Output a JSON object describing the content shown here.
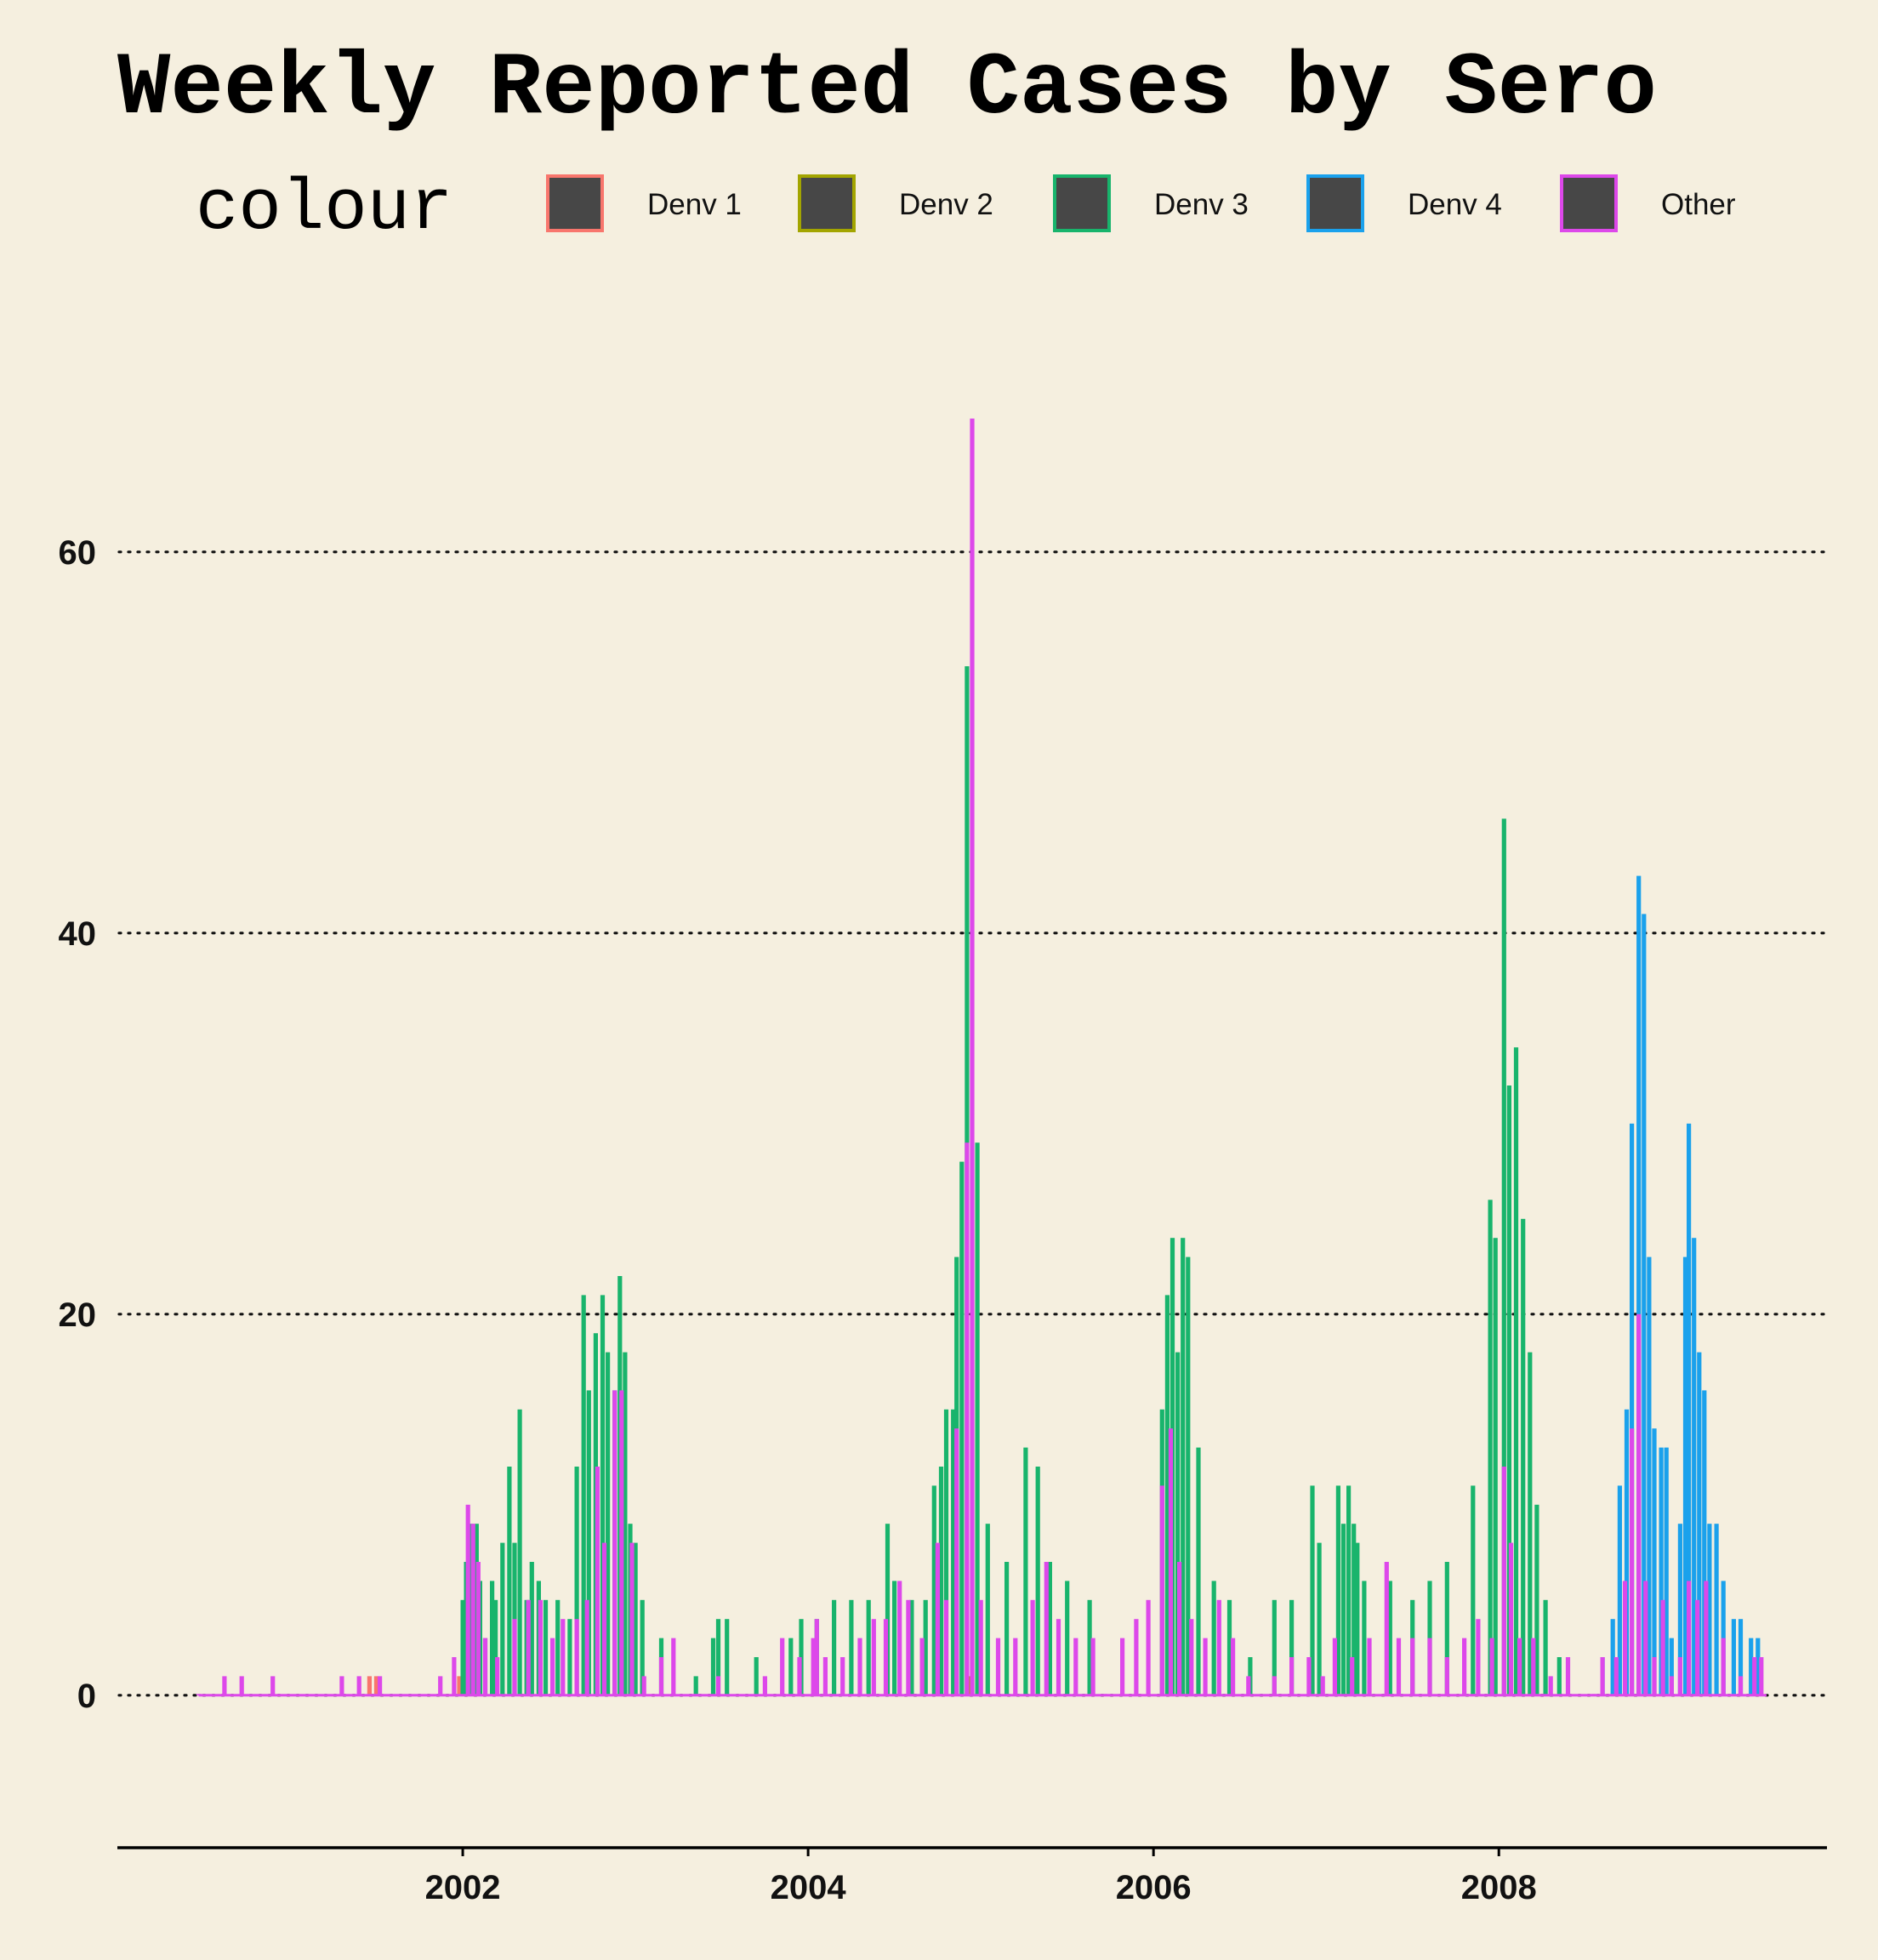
{
  "chart_data": {
    "type": "bar",
    "title": "Weekly Reported Cases by Sero",
    "xlabel": "",
    "ylabel": "",
    "legend": {
      "title": "colour",
      "placement": "top"
    },
    "ylim": [
      -8,
      72
    ],
    "xlim": [
      2000.0,
      2009.9
    ],
    "grid": "horizontal dotted",
    "x_ticks": [
      2002,
      2004,
      2006,
      2008
    ],
    "y_ticks": [
      0,
      20,
      40,
      60
    ],
    "colors": {
      "Denv 1": "#f8766d",
      "Denv 2": "#a3a500",
      "Denv 3": "#18b46c",
      "Denv 4": "#1aa1ec",
      "Other": "#dd48ea",
      "legend_fill": "#474747",
      "background": "#f5efdf"
    },
    "series": [
      {
        "name": "Denv 1",
        "points": [
          [
            2001.46,
            1
          ],
          [
            2001.5,
            1
          ],
          [
            2001.98,
            1
          ],
          [
            2002.0,
            3
          ]
        ]
      },
      {
        "name": "Denv 2",
        "points": [
          [
            2002.02,
            1
          ],
          [
            2004.94,
            1
          ]
        ]
      },
      {
        "name": "Denv 3",
        "points": [
          [
            2002.0,
            5
          ],
          [
            2002.02,
            7
          ],
          [
            2002.05,
            9
          ],
          [
            2002.08,
            9
          ],
          [
            2002.1,
            6
          ],
          [
            2002.13,
            3
          ],
          [
            2002.17,
            6
          ],
          [
            2002.19,
            5
          ],
          [
            2002.23,
            8
          ],
          [
            2002.27,
            12
          ],
          [
            2002.3,
            8
          ],
          [
            2002.33,
            15
          ],
          [
            2002.37,
            5
          ],
          [
            2002.4,
            7
          ],
          [
            2002.44,
            6
          ],
          [
            2002.48,
            5
          ],
          [
            2002.55,
            5
          ],
          [
            2002.62,
            4
          ],
          [
            2002.66,
            12
          ],
          [
            2002.7,
            21
          ],
          [
            2002.73,
            16
          ],
          [
            2002.77,
            19
          ],
          [
            2002.81,
            21
          ],
          [
            2002.84,
            18
          ],
          [
            2002.88,
            16
          ],
          [
            2002.91,
            22
          ],
          [
            2002.94,
            18
          ],
          [
            2002.97,
            9
          ],
          [
            2003.0,
            8
          ],
          [
            2003.04,
            5
          ],
          [
            2003.15,
            3
          ],
          [
            2003.35,
            1
          ],
          [
            2003.45,
            3
          ],
          [
            2003.48,
            4
          ],
          [
            2003.53,
            4
          ],
          [
            2003.7,
            2
          ],
          [
            2003.9,
            3
          ],
          [
            2003.96,
            4
          ],
          [
            2004.05,
            4
          ],
          [
            2004.15,
            5
          ],
          [
            2004.25,
            5
          ],
          [
            2004.35,
            5
          ],
          [
            2004.46,
            9
          ],
          [
            2004.5,
            6
          ],
          [
            2004.6,
            5
          ],
          [
            2004.68,
            5
          ],
          [
            2004.73,
            11
          ],
          [
            2004.77,
            12
          ],
          [
            2004.8,
            15
          ],
          [
            2004.84,
            15
          ],
          [
            2004.86,
            23
          ],
          [
            2004.89,
            28
          ],
          [
            2004.92,
            54
          ],
          [
            2004.98,
            29
          ],
          [
            2005.04,
            9
          ],
          [
            2005.15,
            7
          ],
          [
            2005.26,
            13
          ],
          [
            2005.33,
            12
          ],
          [
            2005.4,
            7
          ],
          [
            2005.5,
            6
          ],
          [
            2005.63,
            5
          ],
          [
            2006.05,
            15
          ],
          [
            2006.08,
            21
          ],
          [
            2006.11,
            24
          ],
          [
            2006.14,
            18
          ],
          [
            2006.17,
            24
          ],
          [
            2006.2,
            23
          ],
          [
            2006.26,
            13
          ],
          [
            2006.35,
            6
          ],
          [
            2006.44,
            5
          ],
          [
            2006.56,
            2
          ],
          [
            2006.7,
            5
          ],
          [
            2006.8,
            5
          ],
          [
            2006.92,
            11
          ],
          [
            2006.96,
            8
          ],
          [
            2007.07,
            11
          ],
          [
            2007.1,
            9
          ],
          [
            2007.13,
            11
          ],
          [
            2007.16,
            9
          ],
          [
            2007.18,
            8
          ],
          [
            2007.22,
            6
          ],
          [
            2007.37,
            6
          ],
          [
            2007.5,
            5
          ],
          [
            2007.6,
            6
          ],
          [
            2007.7,
            7
          ],
          [
            2007.85,
            11
          ],
          [
            2007.95,
            26
          ],
          [
            2007.98,
            24
          ],
          [
            2008.03,
            46
          ],
          [
            2008.06,
            32
          ],
          [
            2008.1,
            34
          ],
          [
            2008.14,
            25
          ],
          [
            2008.18,
            18
          ],
          [
            2008.22,
            10
          ],
          [
            2008.27,
            5
          ],
          [
            2008.35,
            2
          ]
        ]
      },
      {
        "name": "Denv 4",
        "points": [
          [
            2008.6,
            2
          ],
          [
            2008.66,
            4
          ],
          [
            2008.7,
            11
          ],
          [
            2008.74,
            15
          ],
          [
            2008.77,
            30
          ],
          [
            2008.81,
            43
          ],
          [
            2008.84,
            41
          ],
          [
            2008.87,
            23
          ],
          [
            2008.9,
            14
          ],
          [
            2008.94,
            13
          ],
          [
            2008.97,
            13
          ],
          [
            2009.0,
            3
          ],
          [
            2009.05,
            9
          ],
          [
            2009.08,
            23
          ],
          [
            2009.1,
            30
          ],
          [
            2009.13,
            24
          ],
          [
            2009.16,
            18
          ],
          [
            2009.19,
            16
          ],
          [
            2009.22,
            9
          ],
          [
            2009.26,
            9
          ],
          [
            2009.3,
            6
          ],
          [
            2009.36,
            4
          ],
          [
            2009.4,
            4
          ],
          [
            2009.46,
            3
          ],
          [
            2009.5,
            3
          ]
        ]
      },
      {
        "name": "Other",
        "points": [
          [
            2000.47,
            0
          ],
          [
            2000.62,
            1
          ],
          [
            2000.72,
            1
          ],
          [
            2000.9,
            1
          ],
          [
            2001.3,
            1
          ],
          [
            2001.4,
            1
          ],
          [
            2001.52,
            1
          ],
          [
            2001.87,
            1
          ],
          [
            2001.95,
            2
          ],
          [
            2002.03,
            10
          ],
          [
            2002.06,
            9
          ],
          [
            2002.09,
            7
          ],
          [
            2002.13,
            3
          ],
          [
            2002.2,
            2
          ],
          [
            2002.3,
            4
          ],
          [
            2002.38,
            5
          ],
          [
            2002.45,
            5
          ],
          [
            2002.52,
            3
          ],
          [
            2002.58,
            4
          ],
          [
            2002.66,
            4
          ],
          [
            2002.72,
            5
          ],
          [
            2002.78,
            12
          ],
          [
            2002.82,
            8
          ],
          [
            2002.88,
            16
          ],
          [
            2002.92,
            16
          ],
          [
            2002.98,
            8
          ],
          [
            2003.05,
            1
          ],
          [
            2003.15,
            2
          ],
          [
            2003.22,
            3
          ],
          [
            2003.35,
            0
          ],
          [
            2003.48,
            1
          ],
          [
            2003.75,
            1
          ],
          [
            2003.85,
            3
          ],
          [
            2003.95,
            2
          ],
          [
            2004.03,
            3
          ],
          [
            2004.05,
            4
          ],
          [
            2004.1,
            2
          ],
          [
            2004.2,
            2
          ],
          [
            2004.3,
            3
          ],
          [
            2004.38,
            4
          ],
          [
            2004.45,
            4
          ],
          [
            2004.53,
            6
          ],
          [
            2004.58,
            5
          ],
          [
            2004.66,
            3
          ],
          [
            2004.75,
            8
          ],
          [
            2004.8,
            5
          ],
          [
            2004.86,
            14
          ],
          [
            2004.92,
            29
          ],
          [
            2004.95,
            67
          ],
          [
            2005.0,
            5
          ],
          [
            2005.1,
            3
          ],
          [
            2005.2,
            3
          ],
          [
            2005.3,
            5
          ],
          [
            2005.38,
            7
          ],
          [
            2005.45,
            4
          ],
          [
            2005.55,
            3
          ],
          [
            2005.65,
            3
          ],
          [
            2005.72,
            0
          ],
          [
            2005.82,
            3
          ],
          [
            2005.9,
            4
          ],
          [
            2005.97,
            5
          ],
          [
            2006.05,
            11
          ],
          [
            2006.1,
            14
          ],
          [
            2006.15,
            7
          ],
          [
            2006.22,
            4
          ],
          [
            2006.3,
            3
          ],
          [
            2006.38,
            5
          ],
          [
            2006.46,
            3
          ],
          [
            2006.55,
            1
          ],
          [
            2006.7,
            1
          ],
          [
            2006.8,
            2
          ],
          [
            2006.9,
            2
          ],
          [
            2006.98,
            1
          ],
          [
            2007.05,
            3
          ],
          [
            2007.15,
            2
          ],
          [
            2007.25,
            3
          ],
          [
            2007.35,
            7
          ],
          [
            2007.42,
            3
          ],
          [
            2007.5,
            3
          ],
          [
            2007.6,
            3
          ],
          [
            2007.7,
            2
          ],
          [
            2007.8,
            3
          ],
          [
            2007.88,
            4
          ],
          [
            2007.96,
            3
          ],
          [
            2008.03,
            12
          ],
          [
            2008.07,
            8
          ],
          [
            2008.12,
            3
          ],
          [
            2008.2,
            3
          ],
          [
            2008.3,
            1
          ],
          [
            2008.4,
            2
          ],
          [
            2008.55,
            0
          ],
          [
            2008.6,
            2
          ],
          [
            2008.68,
            2
          ],
          [
            2008.73,
            6
          ],
          [
            2008.77,
            14
          ],
          [
            2008.81,
            20
          ],
          [
            2008.85,
            6
          ],
          [
            2008.9,
            2
          ],
          [
            2008.95,
            5
          ],
          [
            2009.0,
            1
          ],
          [
            2009.05,
            2
          ],
          [
            2009.1,
            6
          ],
          [
            2009.15,
            5
          ],
          [
            2009.2,
            6
          ],
          [
            2009.3,
            3
          ],
          [
            2009.4,
            1
          ],
          [
            2009.48,
            2
          ],
          [
            2009.52,
            2
          ]
        ]
      }
    ]
  }
}
